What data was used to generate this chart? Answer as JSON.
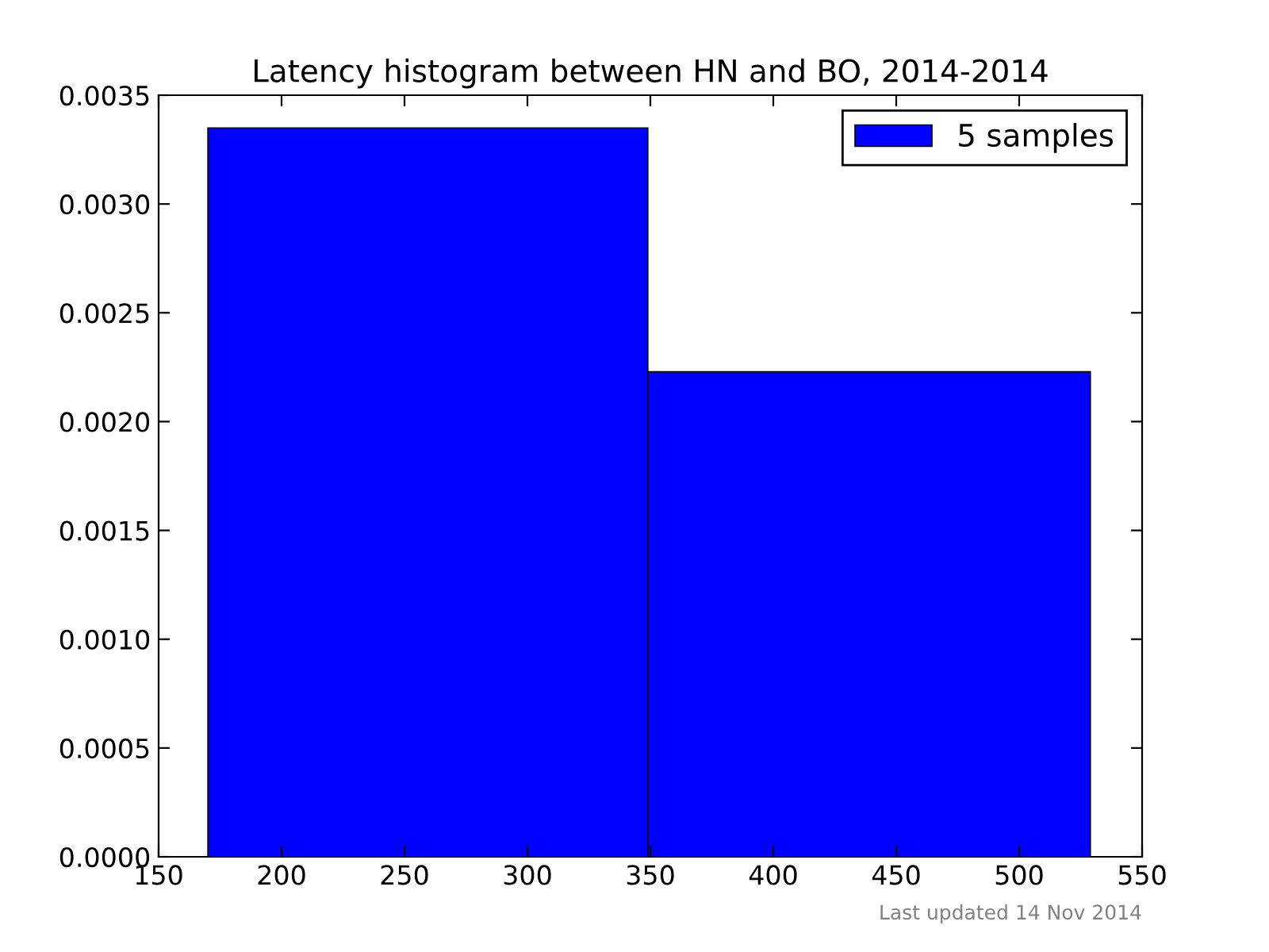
{
  "chart_data": {
    "type": "histogram",
    "title": "Latency histogram between HN and BO, 2014-2014",
    "bins": [
      170,
      349,
      529
    ],
    "series": [
      {
        "name": "5 samples",
        "color": "#0000ff",
        "values": [
          0.00335,
          0.00223
        ]
      }
    ],
    "xlim": [
      150,
      550
    ],
    "xticks": [
      150,
      200,
      250,
      300,
      350,
      400,
      450,
      500,
      550
    ],
    "ylim": [
      0,
      0.0035
    ],
    "yticks": [
      {
        "value": 0,
        "label": "0.0000"
      },
      {
        "value": 0.0005,
        "label": "0.0005"
      },
      {
        "value": 0.001,
        "label": "0.0010"
      },
      {
        "value": 0.0015,
        "label": "0.0015"
      },
      {
        "value": 0.002,
        "label": "0.0020"
      },
      {
        "value": 0.0025,
        "label": "0.0025"
      },
      {
        "value": 0.003,
        "label": "0.0030"
      },
      {
        "value": 0.0035,
        "label": "0.0035"
      }
    ],
    "legend": "top right",
    "grid": false,
    "annotations": [
      "Last updated 14 Nov 2014"
    ]
  }
}
